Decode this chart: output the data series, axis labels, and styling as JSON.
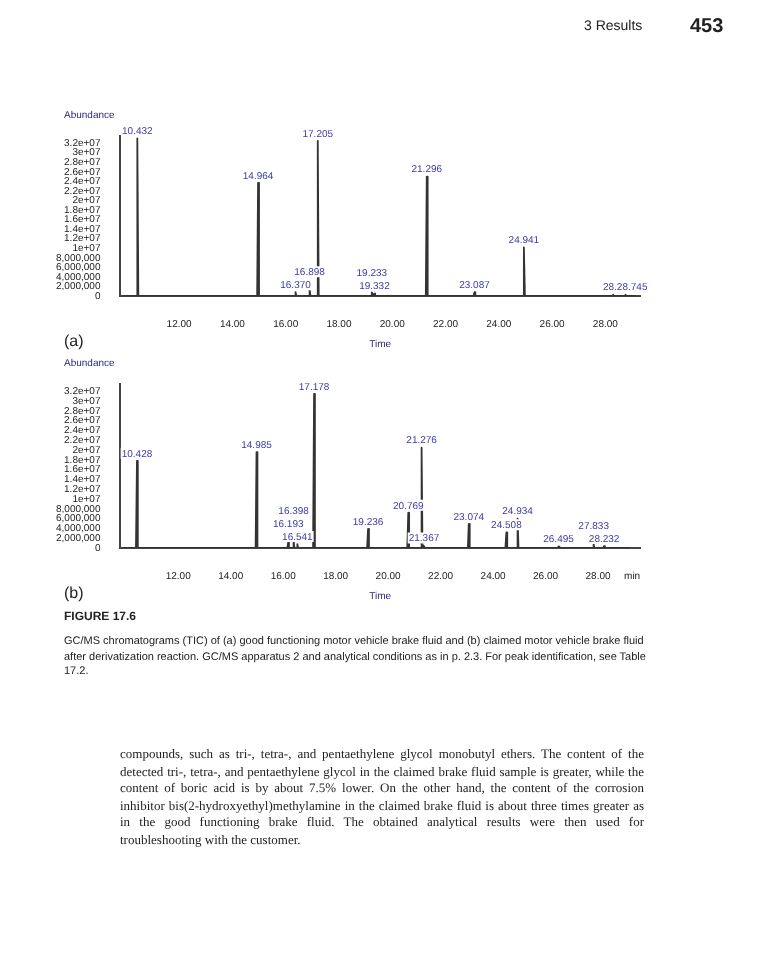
{
  "chart_data": [
    {
      "type": "line",
      "ylabel": "Abundance",
      "xlabel": "Time",
      "grid": false,
      "legend": false,
      "marker": "none",
      "xlim": [
        9.8,
        29.3
      ],
      "xticks": [
        {
          "value": 12,
          "label": "12.00"
        },
        {
          "value": 14,
          "label": "14.00"
        },
        {
          "value": 16,
          "label": "16.00"
        },
        {
          "value": 18,
          "label": "18.00"
        },
        {
          "value": 20,
          "label": "20.00"
        },
        {
          "value": 22,
          "label": "22.00"
        },
        {
          "value": 24,
          "label": "24.00"
        },
        {
          "value": 26,
          "label": "26.00"
        },
        {
          "value": 28,
          "label": "28.00"
        }
      ],
      "ylim": [
        0,
        33500000
      ],
      "yticks": [
        0,
        {
          "value": 2000000,
          "label": "2,000,000"
        },
        {
          "value": 4000000,
          "label": "4,000,000"
        },
        {
          "value": 6000000,
          "label": "6,000,000"
        },
        {
          "value": 8000000,
          "label": "8,000,000"
        },
        {
          "value": 10000000,
          "label": "1e+07"
        },
        {
          "value": 12000000,
          "label": "1.2e+07"
        },
        {
          "value": 14000000,
          "label": "1.4e+07"
        },
        {
          "value": 16000000,
          "label": "1.6e+07"
        },
        {
          "value": 18000000,
          "label": "1.8e+07"
        },
        {
          "value": 20000000,
          "label": "2e+07"
        },
        {
          "value": 22000000,
          "label": "2.2e+07"
        },
        {
          "value": 24000000,
          "label": "2.4e+07"
        },
        {
          "value": 26000000,
          "label": "2.6e+07"
        },
        {
          "value": 28000000,
          "label": "2.8e+07"
        },
        {
          "value": 30000000,
          "label": "3e+07"
        },
        {
          "value": 32000000,
          "label": "3.2e+07"
        }
      ],
      "x": [
        9.9,
        10.4,
        10.432,
        10.47,
        14.93,
        14.964,
        15.0,
        16.34,
        16.37,
        16.4,
        16.87,
        16.898,
        16.93,
        17.17,
        17.205,
        17.24,
        19.2,
        19.233,
        19.27,
        19.3,
        19.332,
        19.36,
        21.26,
        21.296,
        21.33,
        23.05,
        23.087,
        23.12,
        24.91,
        24.941,
        24.98,
        28.25,
        28.28,
        28.31,
        28.72,
        28.745,
        28.77,
        29.1
      ],
      "series": [
        {
          "color": "#333333",
          "values": [
            0,
            0,
            33000000,
            0,
            0,
            23700000,
            0,
            0,
            800000,
            0,
            0,
            1500000,
            0,
            0,
            32500000,
            0,
            0,
            800000,
            0,
            0,
            500000,
            0,
            0,
            25000000,
            0,
            0,
            800000,
            0,
            0,
            10200000,
            0,
            0,
            300000,
            0,
            0,
            300000,
            0,
            0
          ]
        }
      ],
      "annotations": [
        "3 Results",
        "453",
        "(a)",
        {
          "text": "10.432",
          "x": 10.432,
          "y": 33000000
        },
        {
          "text": "14.964",
          "x": 14.964,
          "y": 23700000
        },
        {
          "text": "16.370",
          "x": 16.37,
          "y": 800000
        },
        {
          "text": "16.898",
          "x": 16.898,
          "y": 1500000
        },
        {
          "text": "17.205",
          "x": 17.205,
          "y": 32500000
        },
        {
          "text": "19.233",
          "x": 19.233,
          "y": 800000
        },
        {
          "text": "19.332",
          "x": 19.332,
          "y": 500000
        },
        {
          "text": "21.296",
          "x": 21.296,
          "y": 25000000
        },
        {
          "text": "23.087",
          "x": 23.087,
          "y": 800000
        },
        {
          "text": "24.941",
          "x": 24.941,
          "y": 10200000
        },
        {
          "text": "28.28.745",
          "x": 28.745,
          "y": 300000
        }
      ]
    },
    {
      "type": "line",
      "ylabel": "Abundance",
      "xlabel": "Time",
      "grid": false,
      "legend": false,
      "marker": "none",
      "xlim": [
        9.8,
        29.6
      ],
      "xticks": [
        {
          "value": 12,
          "label": "12.00"
        },
        {
          "value": 14,
          "label": "14.00"
        },
        {
          "value": 16,
          "label": "16.00"
        },
        {
          "value": 18,
          "label": "18.00"
        },
        {
          "value": 20,
          "label": "20.00"
        },
        {
          "value": 22,
          "label": "22.00"
        },
        {
          "value": 24,
          "label": "24.00"
        },
        {
          "value": 26,
          "label": "26.00"
        },
        {
          "value": 28,
          "label": "28.00"
        },
        {
          "value": 29.3,
          "label": "min"
        }
      ],
      "ylim": [
        0,
        33500000
      ],
      "yticks": [
        0,
        {
          "value": 2000000,
          "label": "2,000,000"
        },
        {
          "value": 4000000,
          "label": "4,000,000"
        },
        {
          "value": 6000000,
          "label": "6,000,000"
        },
        {
          "value": 8000000,
          "label": "8,000,000"
        },
        {
          "value": 10000000,
          "label": "1e+07"
        },
        {
          "value": 12000000,
          "label": "1.2e+07"
        },
        {
          "value": 14000000,
          "label": "1.4e+07"
        },
        {
          "value": 16000000,
          "label": "1.6e+07"
        },
        {
          "value": 18000000,
          "label": "1.8e+07"
        },
        {
          "value": 20000000,
          "label": "2e+07"
        },
        {
          "value": 22000000,
          "label": "2.2e+07"
        },
        {
          "value": 24000000,
          "label": "2.4e+07"
        },
        {
          "value": 26000000,
          "label": "2.6e+07"
        },
        {
          "value": 28000000,
          "label": "2.8e+07"
        },
        {
          "value": 30000000,
          "label": "3e+07"
        },
        {
          "value": 32000000,
          "label": "3.2e+07"
        }
      ],
      "x": [
        9.9,
        10.39,
        10.428,
        10.46,
        14.95,
        14.985,
        15.02,
        16.16,
        16.193,
        16.22,
        16.37,
        16.398,
        16.43,
        16.51,
        16.541,
        16.57,
        17.14,
        17.178,
        17.21,
        19.2,
        19.236,
        19.27,
        20.73,
        20.769,
        20.8,
        21.24,
        21.276,
        21.31,
        21.34,
        21.367,
        21.4,
        23.04,
        23.074,
        23.11,
        24.47,
        24.508,
        24.54,
        24.9,
        24.934,
        24.97,
        26.46,
        26.495,
        26.53,
        27.8,
        27.833,
        27.86,
        28.2,
        28.232,
        28.26,
        29.2
      ],
      "series": [
        {
          "color": "#333333",
          "values": [
            0,
            0,
            17800000,
            0,
            0,
            19600000,
            0,
            0,
            1200000,
            0,
            0,
            1500000,
            0,
            0,
            800000,
            0,
            0,
            31500000,
            0,
            0,
            3900000,
            0,
            0,
            7200000,
            0,
            0,
            20500000,
            0,
            0,
            500000,
            0,
            0,
            4900000,
            0,
            0,
            3200000,
            0,
            0,
            6000000,
            0,
            0,
            300000,
            0,
            0,
            800000,
            0,
            0,
            400000,
            0,
            0
          ]
        }
      ],
      "annotations": [
        "(b)",
        "FIGURE 17.6",
        "GC/MS chromatograms (TIC) of (a) good functioning motor vehicle brake fluid and (b) claimed motor vehicle brake fluid after derivatization reaction. GC/MS apparatus 2 and analytical conditions as in p. 2.3. For peak identification, see Table 17.2.",
        "compounds, such as tri-, tetra-, and pentaethylene glycol monobutyl ethers. The content of the detected tri-, tetra-, and pentaethylene glycol in the claimed brake fluid sample is greater, while the content of boric acid is by about 7.5% lower. On the other hand, the content of the corrosion inhibitor bis(2-hydroxyethyl)methylamine in the claimed brake fluid is about three times greater as in the good functioning brake fluid. The obtained analytical results were then used for troubleshooting with the customer.",
        {
          "text": "10.428",
          "x": 10.428,
          "y": 17800000
        },
        {
          "text": "14.985",
          "x": 14.985,
          "y": 19600000
        },
        {
          "text": "16.193",
          "x": 16.193,
          "y": 1200000
        },
        {
          "text": "16.398",
          "x": 16.398,
          "y": 1500000
        },
        {
          "text": "16.541",
          "x": 16.541,
          "y": 800000
        },
        {
          "text": "17.178",
          "x": 17.178,
          "y": 31500000
        },
        {
          "text": "19.236",
          "x": 19.236,
          "y": 3900000
        },
        {
          "text": "20.769",
          "x": 20.769,
          "y": 7200000
        },
        {
          "text": "21.276",
          "x": 21.276,
          "y": 20500000
        },
        {
          "text": "21.367",
          "x": 21.367,
          "y": 500000
        },
        {
          "text": "23.074",
          "x": 23.074,
          "y": 4900000
        },
        {
          "text": "24.508",
          "x": 24.508,
          "y": 3200000
        },
        {
          "text": "24.934",
          "x": 24.934,
          "y": 6000000
        },
        {
          "text": "26.495",
          "x": 26.495,
          "y": 300000
        },
        {
          "text": "27.833",
          "x": 27.833,
          "y": 800000
        },
        {
          "text": "28.232",
          "x": 28.232,
          "y": 400000
        }
      ]
    }
  ]
}
